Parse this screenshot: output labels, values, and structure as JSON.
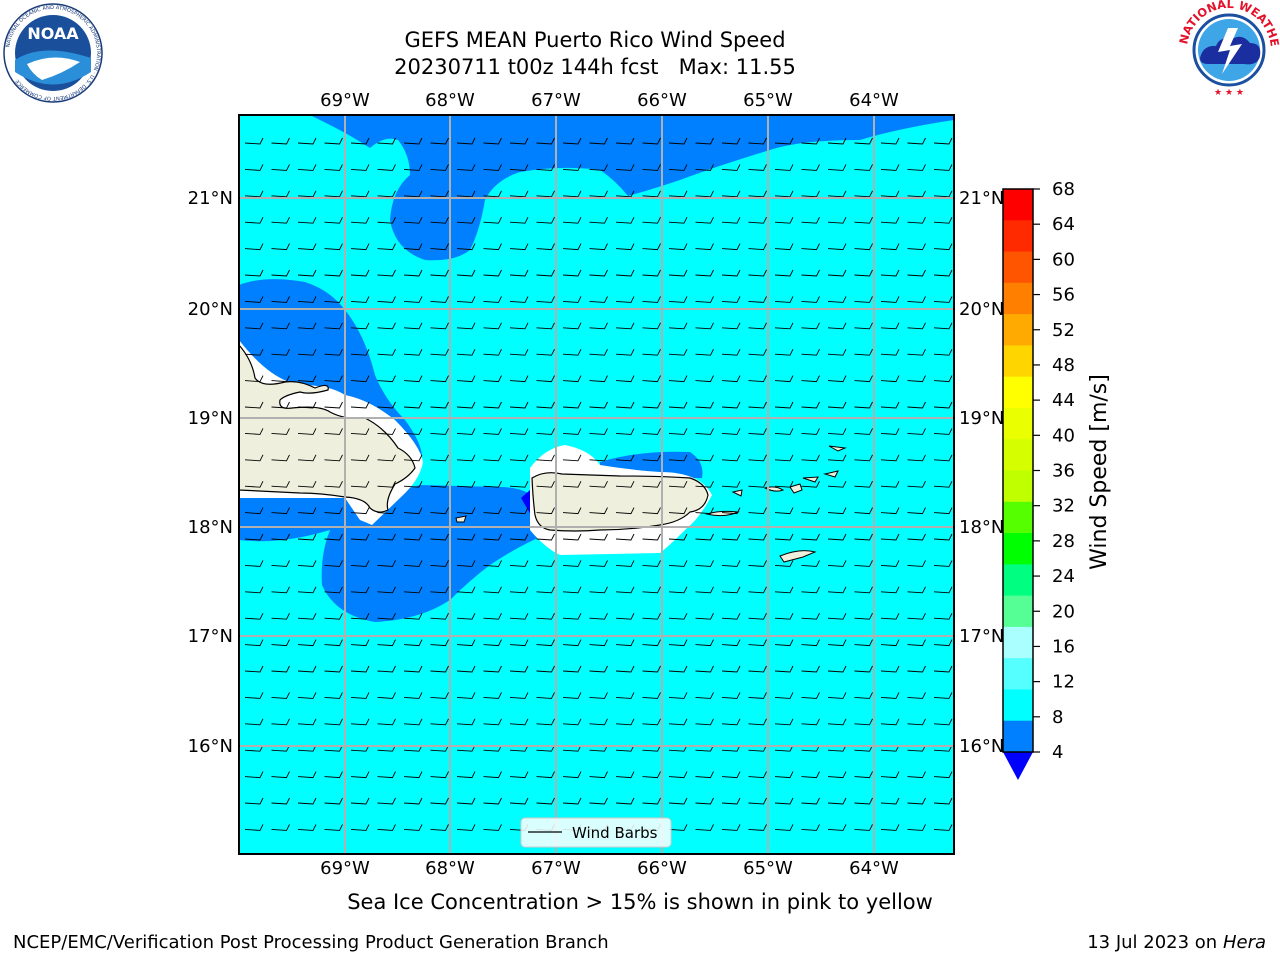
{
  "header": {
    "title_line1": "GEFS MEAN Puerto Rico Wind Speed",
    "title_line2": "20230711 t00z 144h fcst   Max: 11.55"
  },
  "logos": {
    "left": {
      "text": "NOAA",
      "icon": "noaa-logo-icon",
      "ring_text": "NATIONAL OCEANIC AND ATMOSPHERIC ADMINISTRATION · U.S. DEPARTMENT OF COMMERCE"
    },
    "right": {
      "icon": "nws-logo-icon",
      "ring_text": "NATIONAL WEATHER SERVICE"
    }
  },
  "map": {
    "lon_labels": [
      "69°W",
      "68°W",
      "67°W",
      "66°W",
      "65°W",
      "64°W"
    ],
    "lat_labels": [
      "21°N",
      "20°N",
      "19°N",
      "18°N",
      "17°N",
      "16°N"
    ],
    "legend_label": "Wind Barbs",
    "land_color": "#efefdd",
    "colors": {
      "cyan": "#00ffff",
      "blue": "#0080ff",
      "white": "#ffffff",
      "gridline": "#b0b0b0"
    }
  },
  "colorbar": {
    "label": "Wind Speed [m/s]",
    "ticks": [
      "68",
      "64",
      "60",
      "56",
      "52",
      "48",
      "44",
      "40",
      "36",
      "32",
      "28",
      "24",
      "20",
      "16",
      "12",
      "8",
      "4"
    ],
    "colors": [
      "#ff0000",
      "#ff2a00",
      "#ff5500",
      "#ff8000",
      "#ffaa00",
      "#ffd500",
      "#ffff00",
      "#eaff00",
      "#d5ff00",
      "#bfff00",
      "#55ff00",
      "#00ff00",
      "#00ff80",
      "#55ff95",
      "#aaffff",
      "#55ffff",
      "#00ffff",
      "#0080ff"
    ],
    "extend_color": "#0000ff"
  },
  "caption": "Sea Ice Concentration > 15% is shown in pink to yellow",
  "footer": {
    "left": "NCEP/EMC/Verification Post Processing Product Generation Branch",
    "right_date": "13 Jul 2023 on ",
    "right_host": "Hera"
  }
}
